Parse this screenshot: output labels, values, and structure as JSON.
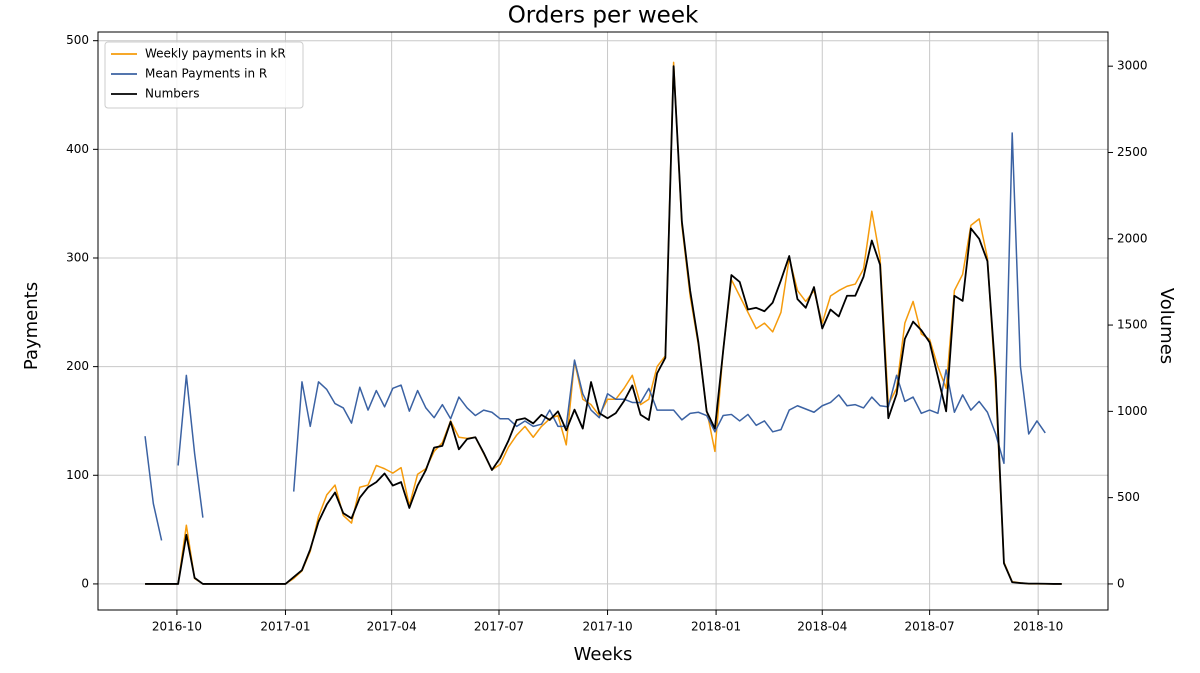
{
  "chart_data": {
    "type": "line",
    "title": "Orders per week",
    "xlabel": "Weeks",
    "ylabel": "Payments",
    "y2label": "Volumes",
    "xlim": [
      -5.7,
      116.6
    ],
    "xticks": [
      {
        "value": 3.857,
        "label": "2016-10"
      },
      {
        "value": 17.0,
        "label": "2017-01"
      },
      {
        "value": 29.857,
        "label": "2017-04"
      },
      {
        "value": 42.857,
        "label": "2017-07"
      },
      {
        "value": 56.0,
        "label": "2017-10"
      },
      {
        "value": 69.143,
        "label": "2018-01"
      },
      {
        "value": 82.0,
        "label": "2018-04"
      },
      {
        "value": 95.0,
        "label": "2018-07"
      },
      {
        "value": 108.143,
        "label": "2018-10"
      }
    ],
    "ylim": [
      -24,
      508
    ],
    "yticks": [
      0,
      100,
      200,
      300,
      400,
      500
    ],
    "y2lim": [
      -151,
      3198
    ],
    "y2ticks": [
      0,
      500,
      1000,
      1500,
      2000,
      2500,
      3000
    ],
    "grid": true,
    "legend": "upper left",
    "series": [
      {
        "name": "Weekly payments in kR",
        "color": "#f59b0c",
        "values": [
          0,
          0,
          0,
          0,
          0,
          54,
          5,
          0,
          0,
          0,
          0,
          0,
          0,
          0,
          0,
          0,
          0,
          0,
          5,
          12,
          30,
          62,
          82,
          91,
          63,
          56,
          89,
          91,
          109,
          106,
          102,
          107,
          72,
          101,
          106,
          122,
          130,
          150,
          135,
          134,
          135,
          120,
          105,
          110,
          126,
          137,
          145,
          135,
          145,
          152,
          155,
          128,
          205,
          170,
          165,
          155,
          170,
          170,
          180,
          192,
          165,
          170,
          200,
          210,
          480,
          330,
          265,
          220,
          160,
          122,
          215,
          280,
          265,
          250,
          235,
          240,
          232,
          250,
          300,
          270,
          260,
          270,
          240,
          265,
          270,
          274,
          276,
          290,
          343,
          300,
          165,
          180,
          240,
          260,
          230,
          225,
          200,
          180,
          270,
          285,
          330,
          336,
          300,
          180,
          20,
          2,
          1,
          0,
          0,
          0,
          0,
          0
        ]
      },
      {
        "name": "Mean Payments in R",
        "color": "#3b62a3",
        "values": [
          136,
          74,
          40,
          null,
          109,
          192,
          120,
          61,
          null,
          null,
          null,
          null,
          null,
          null,
          null,
          null,
          null,
          null,
          85,
          186,
          145,
          186,
          179,
          166,
          162,
          148,
          181,
          160,
          178,
          163,
          180,
          183,
          159,
          178,
          162,
          153,
          165,
          152,
          172,
          162,
          155,
          160,
          158,
          152,
          152,
          145,
          150,
          145,
          147,
          160,
          145,
          145,
          206,
          175,
          160,
          153,
          175,
          170,
          170,
          167,
          167,
          180,
          160,
          160,
          160,
          151,
          157,
          158,
          155,
          140,
          155,
          156,
          150,
          156,
          146,
          150,
          140,
          142,
          160,
          164,
          161,
          158,
          164,
          167,
          174,
          164,
          165,
          162,
          172,
          164,
          163,
          192,
          168,
          172,
          157,
          160,
          157,
          197,
          158,
          174,
          160,
          168,
          158,
          138,
          111,
          415,
          200,
          138,
          150,
          139,
          null,
          null
        ]
      },
      {
        "name": "Numbers",
        "color": "#000000",
        "axis": "y2",
        "values": [
          0,
          0,
          0,
          0,
          0,
          285,
          35,
          0,
          0,
          0,
          0,
          0,
          0,
          0,
          0,
          0,
          0,
          0,
          40,
          80,
          200,
          360,
          460,
          530,
          410,
          380,
          500,
          560,
          590,
          640,
          570,
          590,
          440,
          570,
          660,
          790,
          800,
          940,
          780,
          840,
          850,
          760,
          660,
          730,
          830,
          950,
          960,
          930,
          980,
          950,
          1000,
          890,
          1010,
          900,
          1170,
          990,
          960,
          990,
          1060,
          1150,
          980,
          950,
          1220,
          1310,
          3000,
          2100,
          1700,
          1400,
          1000,
          900,
          1350,
          1790,
          1750,
          1590,
          1600,
          1580,
          1630,
          1760,
          1900,
          1650,
          1600,
          1720,
          1480,
          1590,
          1550,
          1670,
          1670,
          1780,
          1990,
          1850,
          960,
          1100,
          1420,
          1520,
          1470,
          1400,
          1200,
          1000,
          1670,
          1640,
          2060,
          2000,
          1870,
          1200,
          120,
          10,
          5,
          2,
          2,
          1,
          0,
          0
        ]
      }
    ]
  }
}
